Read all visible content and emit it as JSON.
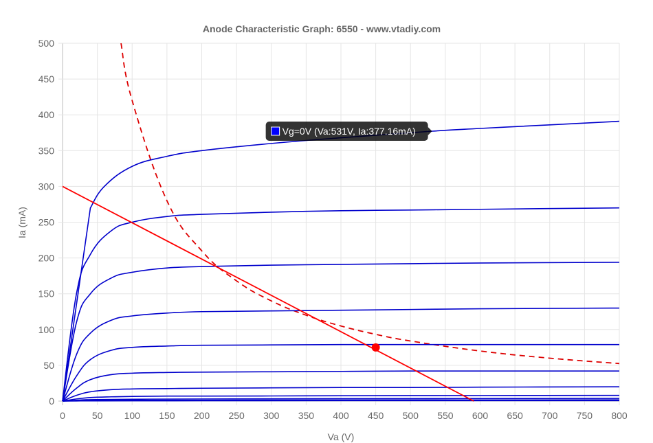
{
  "chart_data": {
    "type": "line",
    "title": "Anode Characteristic Graph: 6550 - www.vtadiy.com",
    "xlabel": "Va (V)",
    "ylabel": "Ia (mA)",
    "xlim": [
      0,
      800
    ],
    "ylim": [
      0,
      500
    ],
    "x_ticks": [
      0,
      50,
      100,
      150,
      200,
      250,
      300,
      350,
      400,
      450,
      500,
      550,
      600,
      650,
      700,
      750,
      800
    ],
    "y_ticks": [
      0,
      50,
      100,
      150,
      200,
      250,
      300,
      350,
      400,
      450,
      500
    ],
    "grid": true,
    "colors": {
      "curves": "#0000cc",
      "load_line": "#ff0000",
      "dissipation": "#dd0000",
      "grid": "#e5e5e5",
      "tooltip_bg": "rgba(0,0,0,0.8)",
      "tooltip_swatch": "#0000ff"
    },
    "series": [
      {
        "name": "Vg=0V",
        "x": [
          0,
          40,
          60,
          100,
          150,
          200,
          300,
          400,
          531,
          600,
          700,
          800
        ],
        "y": [
          0,
          270,
          300,
          328,
          342,
          350,
          360,
          368,
          377.16,
          381,
          386,
          391
        ]
      },
      {
        "x": [
          0,
          20,
          40,
          70,
          100,
          150,
          200,
          300,
          400,
          500,
          600,
          800
        ],
        "y": [
          0,
          150,
          205,
          238,
          250,
          258,
          261,
          264,
          266,
          267,
          268,
          270
        ]
      },
      {
        "x": [
          0,
          20,
          40,
          70,
          100,
          150,
          200,
          300,
          400,
          500,
          600,
          800
        ],
        "y": [
          0,
          110,
          150,
          172,
          180,
          186,
          188,
          190,
          191,
          192,
          193,
          194
        ]
      },
      {
        "x": [
          0,
          20,
          40,
          70,
          100,
          150,
          200,
          300,
          400,
          500,
          600,
          800
        ],
        "y": [
          0,
          65,
          95,
          113,
          119,
          123,
          125,
          126,
          127,
          128,
          129,
          130
        ]
      },
      {
        "x": [
          0,
          20,
          40,
          70,
          100,
          150,
          200,
          300,
          400,
          500,
          600,
          800
        ],
        "y": [
          0,
          35,
          58,
          71,
          75,
          77,
          78,
          78.5,
          79,
          79,
          79,
          79
        ]
      },
      {
        "x": [
          0,
          20,
          40,
          70,
          100,
          150,
          200,
          300,
          400,
          500,
          600,
          800
        ],
        "y": [
          0,
          18,
          30,
          37,
          39,
          40,
          40.5,
          41,
          41.5,
          42,
          42,
          42
        ]
      },
      {
        "x": [
          0,
          20,
          40,
          70,
          100,
          150,
          200,
          300,
          400,
          500,
          600,
          800
        ],
        "y": [
          0,
          8,
          13,
          16,
          17,
          17.5,
          18,
          18.5,
          19,
          19,
          19.5,
          20
        ]
      },
      {
        "x": [
          0,
          20,
          40,
          70,
          100,
          150,
          200,
          300,
          400,
          500,
          600,
          800
        ],
        "y": [
          0,
          3,
          5,
          6,
          6.5,
          7,
          7,
          7.2,
          7.5,
          7.7,
          7.8,
          8
        ]
      },
      {
        "x": [
          0,
          20,
          40,
          100,
          200,
          400,
          800
        ],
        "y": [
          0,
          1.2,
          2,
          2.6,
          3,
          3.4,
          3.8
        ]
      },
      {
        "x": [
          0,
          20,
          40,
          100,
          200,
          400,
          800
        ],
        "y": [
          0,
          0.5,
          0.9,
          1.1,
          1.3,
          1.5,
          1.7
        ]
      },
      {
        "x": [
          0,
          20,
          40,
          100,
          200,
          400,
          800
        ],
        "y": [
          0,
          0.2,
          0.3,
          0.4,
          0.5,
          0.6,
          0.7
        ]
      }
    ],
    "load_line": {
      "x": [
        0,
        591
      ],
      "y": [
        300,
        0
      ]
    },
    "dissipation_curve": {
      "x": [
        84,
        100,
        150,
        200,
        250,
        300,
        350,
        400,
        450,
        500,
        600,
        700,
        800
      ],
      "y": [
        500,
        420,
        280,
        210,
        168,
        140,
        120,
        105,
        93.3,
        84,
        70,
        60,
        52.5
      ]
    },
    "operating_point": {
      "x": 450,
      "y": 75
    },
    "tooltip": {
      "x": 531,
      "y": 377.16,
      "text": "Vg=0V (Va:531V, Ia:377.16mA)"
    }
  }
}
